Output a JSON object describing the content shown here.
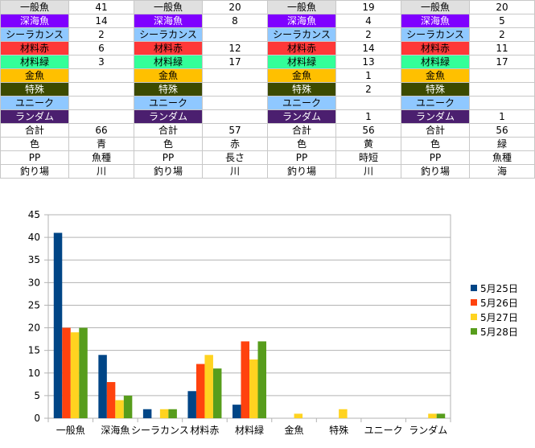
{
  "table": {
    "groups": [
      {
        "rows": [
          {
            "label": "一般魚",
            "value": "41",
            "bg": "#e0e0e0",
            "fg": "#000000"
          },
          {
            "label": "深海魚",
            "value": "14",
            "bg": "#7f00ff",
            "fg": "#ffffff"
          },
          {
            "label": "シーラカンス",
            "value": "2",
            "bg": "#8fc8ff",
            "fg": "#000000"
          },
          {
            "label": "材料赤",
            "value": "6",
            "bg": "#ff3838",
            "fg": "#000000"
          },
          {
            "label": "材料緑",
            "value": "3",
            "bg": "#33ff99",
            "fg": "#000000"
          },
          {
            "label": "金魚",
            "value": "",
            "bg": "#ffc000",
            "fg": "#000000"
          },
          {
            "label": "特殊",
            "value": "",
            "bg": "#3c4a00",
            "fg": "#ffffff"
          },
          {
            "label": "ユニーク",
            "value": "",
            "bg": "#8fc8ff",
            "fg": "#000000"
          },
          {
            "label": "ランダム",
            "value": "",
            "bg": "#4b1f6f",
            "fg": "#ffffff"
          },
          {
            "label": "合計",
            "value": "66",
            "bg": "#ffffff",
            "fg": "#000000"
          },
          {
            "label": "色",
            "value": "青",
            "bg": "#ffffff",
            "fg": "#000000"
          },
          {
            "label": "PP",
            "value": "魚種",
            "bg": "#ffffff",
            "fg": "#000000"
          },
          {
            "label": "釣り場",
            "value": "川",
            "bg": "#ffffff",
            "fg": "#000000"
          }
        ]
      },
      {
        "rows": [
          {
            "label": "一般魚",
            "value": "20",
            "bg": "#e0e0e0",
            "fg": "#000000"
          },
          {
            "label": "深海魚",
            "value": "8",
            "bg": "#7f00ff",
            "fg": "#ffffff"
          },
          {
            "label": "シーラカンス",
            "value": "",
            "bg": "#8fc8ff",
            "fg": "#000000"
          },
          {
            "label": "材料赤",
            "value": "12",
            "bg": "#ff3838",
            "fg": "#000000"
          },
          {
            "label": "材料緑",
            "value": "17",
            "bg": "#33ff99",
            "fg": "#000000"
          },
          {
            "label": "金魚",
            "value": "",
            "bg": "#ffc000",
            "fg": "#000000"
          },
          {
            "label": "特殊",
            "value": "",
            "bg": "#3c4a00",
            "fg": "#ffffff"
          },
          {
            "label": "ユニーク",
            "value": "",
            "bg": "#8fc8ff",
            "fg": "#000000"
          },
          {
            "label": "ランダム",
            "value": "",
            "bg": "#4b1f6f",
            "fg": "#ffffff"
          },
          {
            "label": "合計",
            "value": "57",
            "bg": "#ffffff",
            "fg": "#000000"
          },
          {
            "label": "色",
            "value": "赤",
            "bg": "#ffffff",
            "fg": "#000000"
          },
          {
            "label": "PP",
            "value": "長さ",
            "bg": "#ffffff",
            "fg": "#000000"
          },
          {
            "label": "釣り場",
            "value": "川",
            "bg": "#ffffff",
            "fg": "#000000"
          }
        ]
      },
      {
        "rows": [
          {
            "label": "一般魚",
            "value": "19",
            "bg": "#e0e0e0",
            "fg": "#000000"
          },
          {
            "label": "深海魚",
            "value": "4",
            "bg": "#7f00ff",
            "fg": "#ffffff"
          },
          {
            "label": "シーラカンス",
            "value": "2",
            "bg": "#8fc8ff",
            "fg": "#000000"
          },
          {
            "label": "材料赤",
            "value": "14",
            "bg": "#ff3838",
            "fg": "#000000"
          },
          {
            "label": "材料緑",
            "value": "13",
            "bg": "#33ff99",
            "fg": "#000000"
          },
          {
            "label": "金魚",
            "value": "1",
            "bg": "#ffc000",
            "fg": "#000000"
          },
          {
            "label": "特殊",
            "value": "2",
            "bg": "#3c4a00",
            "fg": "#ffffff"
          },
          {
            "label": "ユニーク",
            "value": "",
            "bg": "#8fc8ff",
            "fg": "#000000"
          },
          {
            "label": "ランダム",
            "value": "1",
            "bg": "#4b1f6f",
            "fg": "#ffffff"
          },
          {
            "label": "合計",
            "value": "56",
            "bg": "#ffffff",
            "fg": "#000000"
          },
          {
            "label": "色",
            "value": "黄",
            "bg": "#ffffff",
            "fg": "#000000"
          },
          {
            "label": "PP",
            "value": "時短",
            "bg": "#ffffff",
            "fg": "#000000"
          },
          {
            "label": "釣り場",
            "value": "川",
            "bg": "#ffffff",
            "fg": "#000000"
          }
        ]
      },
      {
        "rows": [
          {
            "label": "一般魚",
            "value": "20",
            "bg": "#e0e0e0",
            "fg": "#000000"
          },
          {
            "label": "深海魚",
            "value": "5",
            "bg": "#7f00ff",
            "fg": "#ffffff"
          },
          {
            "label": "シーラカンス",
            "value": "2",
            "bg": "#8fc8ff",
            "fg": "#000000"
          },
          {
            "label": "材料赤",
            "value": "11",
            "bg": "#ff3838",
            "fg": "#000000"
          },
          {
            "label": "材料緑",
            "value": "17",
            "bg": "#33ff99",
            "fg": "#000000"
          },
          {
            "label": "金魚",
            "value": "",
            "bg": "#ffc000",
            "fg": "#000000"
          },
          {
            "label": "特殊",
            "value": "",
            "bg": "#3c4a00",
            "fg": "#ffffff"
          },
          {
            "label": "ユニーク",
            "value": "",
            "bg": "#8fc8ff",
            "fg": "#000000"
          },
          {
            "label": "ランダム",
            "value": "1",
            "bg": "#4b1f6f",
            "fg": "#ffffff"
          },
          {
            "label": "合計",
            "value": "56",
            "bg": "#ffffff",
            "fg": "#000000"
          },
          {
            "label": "色",
            "value": "緑",
            "bg": "#ffffff",
            "fg": "#000000"
          },
          {
            "label": "PP",
            "value": "魚種",
            "bg": "#ffffff",
            "fg": "#000000"
          },
          {
            "label": "釣り場",
            "value": "海",
            "bg": "#ffffff",
            "fg": "#000000"
          }
        ]
      }
    ]
  },
  "chart_data": {
    "type": "bar",
    "title": "",
    "xlabel": "",
    "ylabel": "",
    "categories": [
      "一般魚",
      "深海魚",
      "シーラカンス",
      "材料赤",
      "材料緑",
      "金魚",
      "特殊",
      "ユニーク",
      "ランダム"
    ],
    "series": [
      {
        "name": "5月25日",
        "color": "#004586",
        "values": [
          41,
          14,
          2,
          6,
          3,
          0,
          0,
          0,
          0
        ]
      },
      {
        "name": "5月26日",
        "color": "#ff420e",
        "values": [
          20,
          8,
          0,
          12,
          17,
          0,
          0,
          0,
          0
        ]
      },
      {
        "name": "5月27日",
        "color": "#ffd320",
        "values": [
          19,
          4,
          2,
          14,
          13,
          1,
          2,
          0,
          1
        ]
      },
      {
        "name": "5月28日",
        "color": "#579d1c",
        "values": [
          20,
          5,
          2,
          11,
          17,
          0,
          0,
          0,
          1
        ]
      }
    ],
    "ylim": [
      0,
      45
    ],
    "yticks": [
      0,
      5,
      10,
      15,
      20,
      25,
      30,
      35,
      40,
      45
    ],
    "grid": true,
    "legend_position": "right"
  }
}
